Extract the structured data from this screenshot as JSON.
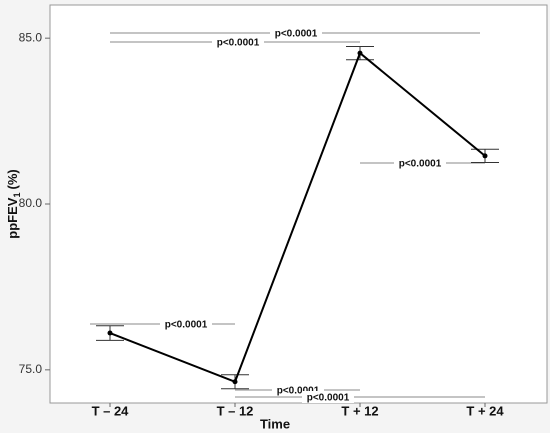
{
  "chart_data": {
    "type": "line",
    "ylabel": [
      "ppFEV",
      "1",
      "(%)"
    ],
    "xlabel": "Time",
    "categories": [
      "T – 24",
      "T – 12",
      "T + 12",
      "T + 24"
    ],
    "series": [
      {
        "name": "ppFEV1",
        "color": "#000000",
        "values": [
          76.11,
          74.64,
          84.55,
          81.45
        ],
        "errors": [
          0.22,
          0.21,
          0.2,
          0.2
        ]
      }
    ],
    "ylim": [
      74.0,
      86.0
    ],
    "yticks": [
      {
        "value": 75,
        "label": "75.0"
      },
      {
        "value": 80,
        "label": "80.0"
      },
      {
        "value": 85,
        "label": "85.0"
      }
    ],
    "annotations": [
      "p<0.0001",
      "p<0.0001",
      "p<0.0001",
      "p<0.0001",
      "p<0.0001",
      "p<0.0001"
    ]
  }
}
